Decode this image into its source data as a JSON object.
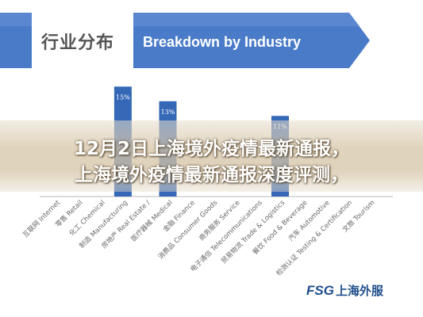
{
  "header": {
    "title_cn": "行业分布",
    "title_en": "Breakdown by Industry",
    "band_color": "#4a7bc8"
  },
  "overlay": {
    "line1": "12月2日上海境外疫情最新通报，",
    "line2": "上海境外疫情最新通报深度评测，"
  },
  "logo": {
    "latin": "FSG",
    "cn": "上海外服"
  },
  "chart_data": {
    "type": "bar",
    "categories": [
      "互联网 Internet",
      "零售 Retail",
      "化工 Chemical",
      "制造 Manufacturing",
      "房地产 Real Estate /",
      "医疗器械 Medical",
      "金融 Finance",
      "消费品 Consumer Goods",
      "商务服务 Service",
      "电子通信 Telecommunications",
      "贸易物流 Trade & Logistics",
      "餐饮 Food & Beverage",
      "汽车 Automotive",
      "检测认证 Testing & Certification",
      "文旅 Tourism"
    ],
    "values": [
      null,
      null,
      null,
      15,
      null,
      13,
      null,
      null,
      null,
      null,
      11,
      null,
      null,
      null,
      null
    ],
    "value_labels": [
      "",
      "",
      "",
      "15%",
      "",
      "13%",
      "",
      "",
      "",
      "",
      "11%",
      "",
      "",
      "",
      ""
    ],
    "title": "Breakdown by Industry",
    "ylim": [
      0,
      16
    ],
    "bar_color": "#3568b7",
    "grid": false
  }
}
